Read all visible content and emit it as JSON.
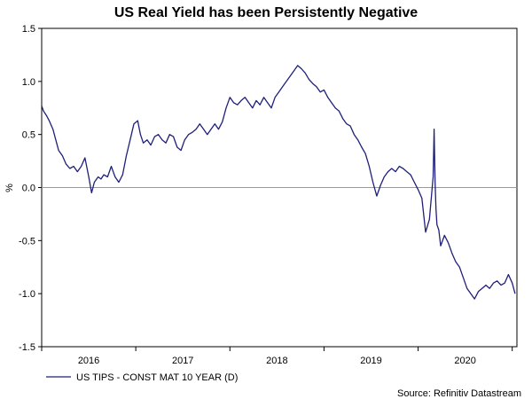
{
  "chart_data": {
    "type": "line",
    "title": "US Real Yield has been Persistently Negative",
    "ylabel": "%",
    "xlabel": "",
    "ylim": [
      -1.5,
      1.5
    ],
    "xlim": [
      2015.5,
      2020.55
    ],
    "yticks": [
      1.5,
      1.0,
      0.5,
      0.0,
      -0.5,
      -1.0,
      -1.5
    ],
    "ytick_labels": [
      "1.5",
      "1.0",
      "0.5",
      "0.0",
      "-0.5",
      "-1.0",
      "-1.5"
    ],
    "xtick_labels": [
      "2016",
      "2017",
      "2018",
      "2019",
      "2020"
    ],
    "xtick_centers": [
      2016.0,
      2017.0,
      2018.0,
      2019.0,
      2020.0
    ],
    "year_boundaries": [
      2015.5,
      2016.5,
      2017.5,
      2018.5,
      2019.5,
      2020.5
    ],
    "zero_line": true,
    "legend": "bottom-left",
    "series": [
      {
        "name": "US TIPS - CONST MAT 10 YEAR (D)",
        "color": "#1f1f7a",
        "x": [
          2015.5,
          2015.52,
          2015.55,
          2015.58,
          2015.62,
          2015.65,
          2015.68,
          2015.72,
          2015.76,
          2015.8,
          2015.84,
          2015.88,
          2015.92,
          2015.96,
          2016.0,
          2016.03,
          2016.06,
          2016.1,
          2016.13,
          2016.16,
          2016.2,
          2016.24,
          2016.28,
          2016.32,
          2016.36,
          2016.4,
          2016.44,
          2016.48,
          2016.52,
          2016.55,
          2016.58,
          2016.62,
          2016.66,
          2016.7,
          2016.74,
          2016.78,
          2016.82,
          2016.86,
          2016.9,
          2016.94,
          2016.98,
          2017.02,
          2017.06,
          2017.1,
          2017.14,
          2017.18,
          2017.22,
          2017.26,
          2017.3,
          2017.34,
          2017.38,
          2017.42,
          2017.46,
          2017.5,
          2017.54,
          2017.58,
          2017.62,
          2017.66,
          2017.7,
          2017.74,
          2017.78,
          2017.82,
          2017.86,
          2017.9,
          2017.94,
          2017.98,
          2018.02,
          2018.06,
          2018.1,
          2018.14,
          2018.18,
          2018.22,
          2018.26,
          2018.3,
          2018.34,
          2018.38,
          2018.42,
          2018.46,
          2018.5,
          2018.54,
          2018.58,
          2018.62,
          2018.66,
          2018.7,
          2018.74,
          2018.78,
          2018.82,
          2018.86,
          2018.9,
          2018.94,
          2018.98,
          2019.02,
          2019.06,
          2019.1,
          2019.14,
          2019.18,
          2019.22,
          2019.26,
          2019.3,
          2019.34,
          2019.38,
          2019.42,
          2019.46,
          2019.5,
          2019.54,
          2019.58,
          2019.62,
          2019.64,
          2019.66,
          2019.67,
          2019.68,
          2019.69,
          2019.7,
          2019.72,
          2019.74,
          2019.78,
          2019.82,
          2019.86,
          2019.9,
          2019.94,
          2019.98,
          2020.02,
          2020.06,
          2020.1,
          2020.14,
          2020.18,
          2020.22,
          2020.26,
          2020.3,
          2020.34,
          2020.38,
          2020.42,
          2020.46,
          2020.5,
          2020.53
        ],
        "y": [
          0.77,
          0.72,
          0.68,
          0.63,
          0.55,
          0.45,
          0.35,
          0.3,
          0.22,
          0.18,
          0.2,
          0.15,
          0.2,
          0.28,
          0.1,
          -0.05,
          0.05,
          0.1,
          0.08,
          0.12,
          0.1,
          0.2,
          0.1,
          0.05,
          0.12,
          0.3,
          0.45,
          0.6,
          0.63,
          0.5,
          0.42,
          0.45,
          0.4,
          0.48,
          0.5,
          0.45,
          0.42,
          0.5,
          0.48,
          0.38,
          0.35,
          0.45,
          0.5,
          0.52,
          0.55,
          0.6,
          0.55,
          0.5,
          0.55,
          0.6,
          0.55,
          0.62,
          0.75,
          0.85,
          0.8,
          0.78,
          0.82,
          0.85,
          0.8,
          0.75,
          0.82,
          0.78,
          0.85,
          0.8,
          0.75,
          0.85,
          0.9,
          0.95,
          1.0,
          1.05,
          1.1,
          1.15,
          1.12,
          1.08,
          1.02,
          0.98,
          0.95,
          0.9,
          0.92,
          0.85,
          0.8,
          0.75,
          0.72,
          0.65,
          0.6,
          0.58,
          0.5,
          0.45,
          0.38,
          0.32,
          0.2,
          0.05,
          -0.08,
          0.02,
          0.1,
          0.15,
          0.18,
          0.15,
          0.2,
          0.18,
          0.15,
          0.12,
          0.05,
          -0.02,
          -0.1,
          -0.42,
          -0.3,
          -0.1,
          0.1,
          0.55,
          0.05,
          -0.2,
          -0.35,
          -0.4,
          -0.55,
          -0.45,
          -0.52,
          -0.62,
          -0.7,
          -0.75,
          -0.85,
          -0.95,
          -1.0,
          -1.05,
          -0.98,
          -0.95,
          -0.92,
          -0.95,
          -0.9,
          -0.88,
          -0.92,
          -0.9,
          -0.82,
          -0.9,
          -1.0
        ]
      }
    ],
    "source": "Source: Refinitiv Datastream"
  }
}
